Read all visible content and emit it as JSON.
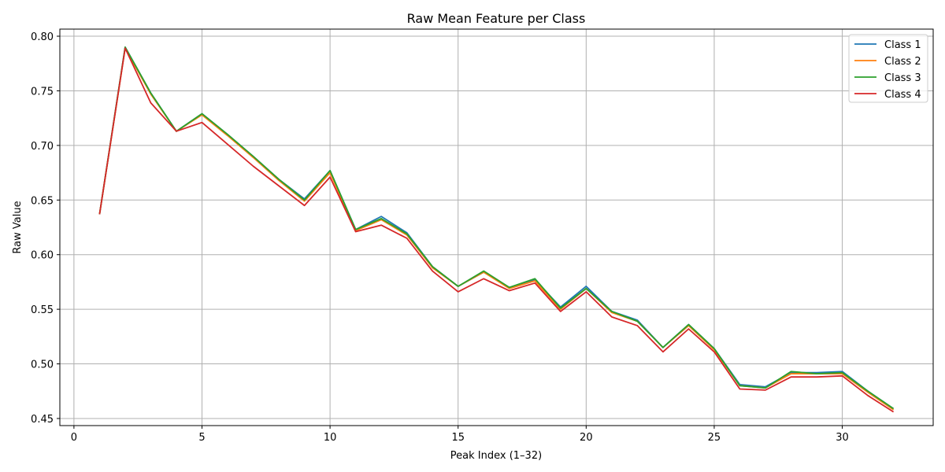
{
  "chart_data": {
    "type": "line",
    "title": "Raw Mean Feature per Class",
    "xlabel": "Peak Index (1–32)",
    "ylabel": "Raw Value",
    "xlim": [
      -0.55,
      33.55
    ],
    "ylim": [
      0.4435,
      0.8065
    ],
    "xticks": [
      0,
      5,
      10,
      15,
      20,
      25,
      30
    ],
    "yticks": [
      0.45,
      0.5,
      0.55,
      0.6,
      0.65,
      0.7,
      0.75,
      0.8
    ],
    "grid": true,
    "legend_position": "top-right",
    "x": [
      1,
      2,
      3,
      4,
      5,
      6,
      7,
      8,
      9,
      10,
      11,
      12,
      13,
      14,
      15,
      16,
      17,
      18,
      19,
      20,
      21,
      22,
      23,
      24,
      25,
      26,
      27,
      28,
      29,
      30,
      31,
      32
    ],
    "series": [
      {
        "name": "Class 1",
        "color": "#1f77b4",
        "values": [
          0.637,
          0.79,
          0.748,
          0.713,
          0.729,
          0.71,
          0.69,
          0.669,
          0.651,
          0.677,
          0.623,
          0.635,
          0.62,
          0.589,
          0.571,
          0.584,
          0.57,
          0.577,
          0.552,
          0.571,
          0.548,
          0.54,
          0.515,
          0.536,
          0.514,
          0.481,
          0.479,
          0.492,
          0.492,
          0.493,
          0.475,
          0.459
        ]
      },
      {
        "name": "Class 2",
        "color": "#ff7f0e",
        "values": [
          0.637,
          0.789,
          0.747,
          0.713,
          0.728,
          0.709,
          0.689,
          0.668,
          0.649,
          0.675,
          0.622,
          0.632,
          0.618,
          0.588,
          0.571,
          0.584,
          0.569,
          0.576,
          0.55,
          0.569,
          0.547,
          0.539,
          0.515,
          0.535,
          0.513,
          0.48,
          0.478,
          0.491,
          0.491,
          0.491,
          0.474,
          0.458
        ]
      },
      {
        "name": "Class 3",
        "color": "#2ca02c",
        "values": [
          0.637,
          0.79,
          0.748,
          0.713,
          0.729,
          0.71,
          0.69,
          0.669,
          0.65,
          0.677,
          0.623,
          0.633,
          0.619,
          0.589,
          0.571,
          0.585,
          0.57,
          0.578,
          0.551,
          0.569,
          0.548,
          0.539,
          0.515,
          0.536,
          0.514,
          0.48,
          0.478,
          0.493,
          0.491,
          0.492,
          0.475,
          0.459
        ]
      },
      {
        "name": "Class 4",
        "color": "#d62728",
        "values": [
          0.637,
          0.789,
          0.739,
          0.713,
          0.721,
          0.701,
          0.681,
          0.663,
          0.645,
          0.671,
          0.621,
          0.627,
          0.615,
          0.585,
          0.566,
          0.578,
          0.567,
          0.574,
          0.548,
          0.566,
          0.543,
          0.535,
          0.511,
          0.532,
          0.511,
          0.477,
          0.476,
          0.488,
          0.488,
          0.489,
          0.471,
          0.456
        ]
      }
    ]
  }
}
